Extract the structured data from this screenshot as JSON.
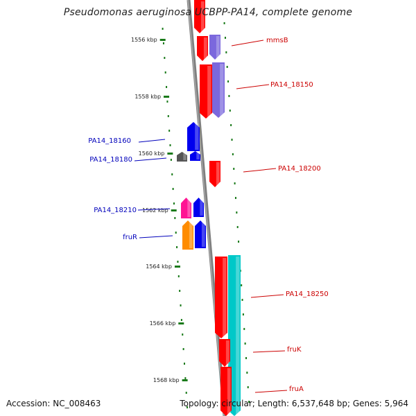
{
  "title": "Pseudomonas aeruginosa UCBPP-PA14, complete genome",
  "footer": {
    "accession": "Accession: NC_008463",
    "summary": "Topology: circular; Length: 6,537,648 bp; Genes: 5,964"
  },
  "colors": {
    "backbone": "#808080",
    "tick": "#1a7a1a",
    "forward_label": "#cc0000",
    "reverse_label": "#0000bb",
    "red": "#ff0000",
    "purple": "#7b68dd",
    "blue": "#0000ee",
    "gray": "#555555",
    "pink": "#ff1493",
    "orange": "#ff8c00",
    "cyan": "#00c8c8"
  },
  "ticks": [
    "1556 kbp",
    "1558 kbp",
    "1560 kbp",
    "1562 kbp",
    "1564 kbp",
    "1566 kbp",
    "1568 kbp"
  ],
  "gene_labels": [
    {
      "text": "mmsB",
      "side": "right"
    },
    {
      "text": "PA14_18150",
      "side": "right"
    },
    {
      "text": "PA14_18160",
      "side": "left"
    },
    {
      "text": "PA14_18180",
      "side": "left"
    },
    {
      "text": "PA14_18200",
      "side": "right"
    },
    {
      "text": "PA14_18210",
      "side": "left"
    },
    {
      "text": "fruR",
      "side": "left"
    },
    {
      "text": "PA14_18250",
      "side": "right"
    },
    {
      "text": "fruK",
      "side": "right"
    },
    {
      "text": "fruA",
      "side": "right"
    }
  ],
  "features": [
    {
      "color": "red",
      "strand": "forward"
    },
    {
      "color": "red",
      "strand": "forward"
    },
    {
      "color": "purple",
      "strand": "forward"
    },
    {
      "color": "red",
      "strand": "forward"
    },
    {
      "color": "purple",
      "strand": "forward"
    },
    {
      "color": "blue",
      "strand": "reverse"
    },
    {
      "color": "gray",
      "strand": "reverse"
    },
    {
      "color": "blue",
      "strand": "reverse"
    },
    {
      "color": "red",
      "strand": "forward"
    },
    {
      "color": "pink",
      "strand": "reverse"
    },
    {
      "color": "blue",
      "strand": "reverse"
    },
    {
      "color": "orange",
      "strand": "reverse"
    },
    {
      "color": "blue",
      "strand": "reverse"
    },
    {
      "color": "red",
      "strand": "forward"
    },
    {
      "color": "cyan",
      "strand": "forward"
    },
    {
      "color": "red",
      "strand": "forward"
    },
    {
      "color": "red",
      "strand": "forward"
    }
  ]
}
